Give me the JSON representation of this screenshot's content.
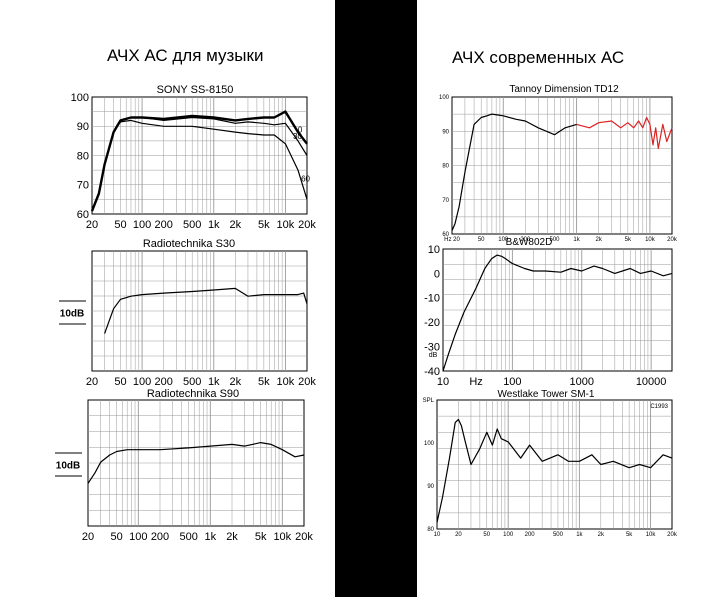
{
  "left_heading": "АЧХ АС для музыки",
  "right_heading": "АЧХ современных АС",
  "colors": {
    "divider": "#000000",
    "curve": "#000000",
    "grid": "#999999",
    "highlight": "#dd2222"
  },
  "chart_data": [
    {
      "type": "line",
      "title": "SONY SS-8150",
      "x_scale": "log",
      "x_range": [
        20,
        20000
      ],
      "y_range": [
        60,
        100
      ],
      "y_ticks": [
        "100",
        "90",
        "80",
        "70",
        "60"
      ],
      "x_ticks": [
        "20",
        "50",
        "100",
        "200",
        "500",
        "1k",
        "2k",
        "5k",
        "10k",
        "20k"
      ],
      "annotations": [
        "0",
        "30",
        "60"
      ],
      "series": [
        {
          "name": "0",
          "x": [
            20,
            25,
            30,
            40,
            50,
            70,
            100,
            200,
            500,
            1000,
            2000,
            3000,
            5000,
            7000,
            10000,
            15000,
            20000
          ],
          "y": [
            61,
            67,
            77,
            88,
            92,
            93,
            93,
            92.5,
            93.5,
            93,
            92,
            92.5,
            93,
            93,
            95,
            88,
            84
          ]
        },
        {
          "name": "30",
          "x": [
            20,
            25,
            30,
            40,
            50,
            70,
            100,
            200,
            500,
            1000,
            2000,
            3000,
            5000,
            7000,
            10000,
            15000,
            20000
          ],
          "y": [
            61,
            67,
            77,
            88,
            92,
            93,
            93,
            92,
            93,
            92.5,
            91,
            91.5,
            91,
            90.5,
            91,
            85,
            80
          ]
        },
        {
          "name": "60",
          "x": [
            20,
            25,
            30,
            40,
            50,
            70,
            100,
            200,
            500,
            1000,
            2000,
            3000,
            5000,
            7000,
            10000,
            15000,
            20000
          ],
          "y": [
            61,
            67,
            77,
            88,
            91.5,
            92,
            91,
            90,
            90,
            89,
            88,
            87.5,
            87,
            87,
            84,
            75,
            65
          ]
        }
      ]
    },
    {
      "type": "line",
      "title": "Radiotechnika S30",
      "x_scale": "log",
      "x_range": [
        20,
        20000
      ],
      "scale_label": "10dB",
      "x_ticks": [
        "20",
        "50",
        "100",
        "200",
        "500",
        "1k",
        "2k",
        "5k",
        "10k",
        "20k"
      ],
      "series": [
        {
          "x": [
            30,
            40,
            50,
            70,
            100,
            200,
            500,
            1000,
            2000,
            3000,
            5000,
            10000,
            15000,
            18000,
            20000
          ],
          "y": [
            -13,
            -5,
            -2,
            -1,
            -0.5,
            0,
            0.5,
            1,
            1.5,
            -1,
            -0.5,
            -0.5,
            -0.5,
            0,
            -3.5
          ]
        }
      ]
    },
    {
      "type": "line",
      "title": "Radiotechnika S90",
      "x_scale": "log",
      "x_range": [
        20,
        20000
      ],
      "scale_label": "10dB",
      "x_ticks": [
        "20",
        "50",
        "100",
        "200",
        "500",
        "1k",
        "2k",
        "5k",
        "10k",
        "20k"
      ],
      "series": [
        {
          "x": [
            20,
            25,
            30,
            40,
            50,
            70,
            100,
            200,
            500,
            1000,
            2000,
            3000,
            5000,
            7000,
            10000,
            15000,
            20000
          ],
          "y": [
            -8,
            -5,
            -2,
            0,
            1,
            1.5,
            1.5,
            1.5,
            2,
            2.5,
            3,
            2.5,
            3.5,
            3,
            1.5,
            -0.5,
            0
          ]
        }
      ]
    },
    {
      "type": "line",
      "title": "Tannoy Dimension TD12",
      "x_scale": "log",
      "x_range": [
        20,
        20000
      ],
      "y_range": [
        60,
        100
      ],
      "y_ticks": [
        "100",
        "90",
        "80",
        "70",
        "60"
      ],
      "x_ticks": [
        "Hz 20",
        "50",
        "100",
        "200",
        "500",
        "1k",
        "2k",
        "5k",
        "10k",
        "20k"
      ],
      "series": [
        {
          "x": [
            20,
            22,
            25,
            30,
            40,
            50,
            60,
            70,
            100,
            150,
            200,
            300,
            500,
            700,
            1000
          ],
          "y": [
            61,
            63,
            68,
            78,
            92,
            94,
            94.5,
            95,
            94.5,
            93.5,
            93,
            91,
            89,
            91,
            92
          ]
        },
        {
          "x": [
            1000,
            1500,
            2000,
            3000,
            4000,
            5000,
            6000,
            7000,
            8000,
            9000,
            10000,
            11000,
            12000,
            13000,
            15000,
            17000,
            20000
          ],
          "y": [
            92,
            91,
            92.5,
            93,
            91,
            92.5,
            91,
            93,
            91,
            94,
            92,
            86,
            91,
            85,
            92,
            87,
            91
          ]
        }
      ]
    },
    {
      "type": "line",
      "title": "B&W802D",
      "x_scale": "log",
      "x_range": [
        10,
        20000
      ],
      "y_range": [
        -40,
        10
      ],
      "y_ticks": [
        "10",
        "0",
        "-10",
        "-20",
        "-30",
        "-40"
      ],
      "x_ticks": [
        "10",
        "Hz",
        "100",
        "1000",
        "10000"
      ],
      "y_unit": "dB",
      "series": [
        {
          "x": [
            10,
            12,
            15,
            20,
            30,
            40,
            50,
            60,
            70,
            80,
            100,
            150,
            200,
            300,
            500,
            700,
            1000,
            1500,
            2000,
            3000,
            5000,
            7000,
            10000,
            15000,
            20000
          ],
          "y": [
            -40,
            -33,
            -25,
            -16,
            -6,
            2,
            6,
            7.5,
            7,
            6,
            4,
            2,
            1,
            1,
            0.5,
            2,
            1,
            3,
            2,
            0,
            2,
            0,
            1,
            -1,
            0
          ]
        }
      ]
    },
    {
      "type": "line",
      "title": "Westlake Tower SM-1",
      "x_scale": "log",
      "x_range": [
        10,
        20000
      ],
      "y_range": [
        70,
        110
      ],
      "y_ticks": [
        "SPL",
        "100",
        "90",
        "80"
      ],
      "x_ticks": [
        "10",
        "20",
        "50",
        "100",
        "200",
        "500",
        "1k",
        "2k",
        "5k",
        "10k",
        "20k"
      ],
      "corner_label": "C1993",
      "series": [
        {
          "x": [
            10,
            12,
            15,
            18,
            20,
            22,
            25,
            30,
            40,
            50,
            60,
            70,
            80,
            100,
            150,
            200,
            300,
            500,
            700,
            1000,
            1500,
            2000,
            3000,
            5000,
            7000,
            10000,
            15000,
            20000
          ],
          "y": [
            72,
            80,
            92,
            103,
            104,
            102,
            97,
            90,
            95,
            100,
            96,
            101,
            98,
            97,
            92,
            96,
            91,
            93,
            91,
            91,
            93,
            90,
            91,
            89,
            90,
            89,
            93,
            92
          ]
        }
      ]
    }
  ]
}
